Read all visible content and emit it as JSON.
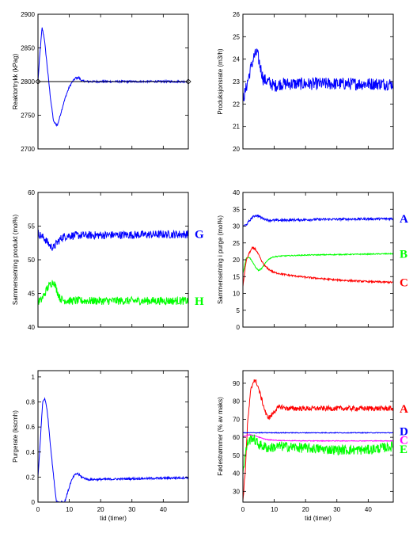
{
  "colors": {
    "blue": "#0000ff",
    "green": "#00ff00",
    "red": "#ff0000",
    "magenta": "#ff00ff",
    "black": "#000000"
  },
  "chart_data": [
    {
      "type": "line",
      "ylabel": "Reaktortrykk (kPag)",
      "xlabel": "",
      "xlim": [
        0,
        48
      ],
      "ylim": [
        2700,
        2900
      ],
      "xticks": [],
      "yticks": [
        "2700",
        "2750",
        "2800",
        "2850",
        "2900"
      ],
      "series": [
        {
          "color": "blue",
          "noise": 1.5,
          "points": [
            [
              0,
              2800
            ],
            [
              0.5,
              2835
            ],
            [
              1.3,
              2880
            ],
            [
              2,
              2865
            ],
            [
              3,
              2820
            ],
            [
              4,
              2775
            ],
            [
              5,
              2740
            ],
            [
              6.2,
              2735
            ],
            [
              7,
              2748
            ],
            [
              8,
              2765
            ],
            [
              9,
              2780
            ],
            [
              10,
              2792
            ],
            [
              11,
              2800
            ],
            [
              12,
              2805
            ],
            [
              13,
              2806
            ],
            [
              14,
              2801
            ],
            [
              16,
              2800
            ],
            [
              48,
              2800
            ]
          ]
        },
        {
          "color": "black",
          "noise": 0,
          "points": [
            [
              0,
              2800
            ],
            [
              48,
              2800
            ]
          ]
        }
      ],
      "markers": [
        [
          0,
          2800
        ],
        [
          48,
          2800
        ]
      ],
      "series_labels": []
    },
    {
      "type": "line",
      "ylabel": "Produksjonsrate (m3/h)",
      "xlabel": "",
      "xlim": [
        0,
        48
      ],
      "ylim": [
        20,
        26
      ],
      "xticks": [],
      "yticks": [
        "20",
        "21",
        "22",
        "23",
        "24",
        "25",
        "26"
      ],
      "series": [
        {
          "color": "blue",
          "noise": 0.28,
          "points": [
            [
              0,
              22.3
            ],
            [
              0.5,
              22.4
            ],
            [
              1.5,
              23
            ],
            [
              2.5,
              23.6
            ],
            [
              3.5,
              24.1
            ],
            [
              4.5,
              24.3
            ],
            [
              5.5,
              23.7
            ],
            [
              6.5,
              23.1
            ],
            [
              8,
              23
            ],
            [
              10,
              22.8
            ],
            [
              12,
              22.9
            ],
            [
              48,
              22.9
            ]
          ]
        }
      ],
      "markers": [],
      "series_labels": []
    },
    {
      "type": "line",
      "ylabel": "Sammensetning produkt (mol%)",
      "xlabel": "",
      "xlim": [
        0,
        48
      ],
      "ylim": [
        40,
        60
      ],
      "xticks": [],
      "yticks": [
        "40",
        "45",
        "50",
        "55",
        "60"
      ],
      "series": [
        {
          "color": "blue",
          "noise": 0.6,
          "points": [
            [
              0,
              54
            ],
            [
              1,
              53.5
            ],
            [
              2,
              53.2
            ],
            [
              3,
              52.6
            ],
            [
              4,
              52
            ],
            [
              5,
              51.8
            ],
            [
              6,
              52.5
            ],
            [
              7,
              53
            ],
            [
              8,
              53.4
            ],
            [
              10,
              53.6
            ],
            [
              48,
              53.8
            ]
          ]
        },
        {
          "color": "green",
          "noise": 0.6,
          "points": [
            [
              0,
              43.8
            ],
            [
              1,
              44
            ],
            [
              2,
              44.8
            ],
            [
              3,
              45.8
            ],
            [
              4,
              46.4
            ],
            [
              5,
              46.8
            ],
            [
              6,
              45.5
            ],
            [
              7,
              44.3
            ],
            [
              8,
              44
            ],
            [
              10,
              43.9
            ],
            [
              48,
              43.9
            ]
          ]
        }
      ],
      "markers": [],
      "series_labels": [
        {
          "text": "G",
          "color": "blue",
          "y": 53.8
        },
        {
          "text": "H",
          "color": "green",
          "y": 43.9
        }
      ]
    },
    {
      "type": "line",
      "ylabel": "Sammensetning i purge (mol%)",
      "xlabel": "",
      "xlim": [
        0,
        48
      ],
      "ylim": [
        0,
        40
      ],
      "xticks": [],
      "yticks": [
        "0",
        "5",
        "10",
        "15",
        "20",
        "25",
        "30",
        "35",
        "40"
      ],
      "series": [
        {
          "color": "blue",
          "noise": 0.35,
          "points": [
            [
              0,
              30
            ],
            [
              1,
              30.3
            ],
            [
              2,
              31.5
            ],
            [
              3,
              32.6
            ],
            [
              4,
              33.2
            ],
            [
              5,
              33
            ],
            [
              6,
              32.4
            ],
            [
              8,
              31.8
            ],
            [
              10,
              31.7
            ],
            [
              15,
              31.8
            ],
            [
              25,
              32
            ],
            [
              48,
              32.2
            ]
          ]
        },
        {
          "color": "green",
          "noise": 0.15,
          "points": [
            [
              0,
              16
            ],
            [
              0.5,
              18
            ],
            [
              1,
              20.5
            ],
            [
              2,
              20.8
            ],
            [
              3,
              19.5
            ],
            [
              4,
              17.8
            ],
            [
              5,
              16.8
            ],
            [
              6,
              17.4
            ],
            [
              7,
              18.8
            ],
            [
              8,
              20
            ],
            [
              9,
              20.6
            ],
            [
              10,
              20.9
            ],
            [
              12,
              21.1
            ],
            [
              20,
              21.4
            ],
            [
              48,
              21.8
            ]
          ]
        },
        {
          "color": "red",
          "noise": 0.25,
          "points": [
            [
              0,
              12
            ],
            [
              0.5,
              16
            ],
            [
              1,
              19.5
            ],
            [
              2,
              22
            ],
            [
              3,
              23.5
            ],
            [
              4,
              23.2
            ],
            [
              5,
              21.5
            ],
            [
              6,
              19.5
            ],
            [
              7,
              18.2
            ],
            [
              8,
              17.3
            ],
            [
              10,
              16.2
            ],
            [
              14,
              15.5
            ],
            [
              20,
              14.8
            ],
            [
              30,
              14
            ],
            [
              40,
              13.5
            ],
            [
              48,
              13.3
            ]
          ]
        }
      ],
      "markers": [],
      "series_labels": [
        {
          "text": "A",
          "color": "blue",
          "y": 32.2
        },
        {
          "text": "B",
          "color": "green",
          "y": 21.8
        },
        {
          "text": "C",
          "color": "red",
          "y": 13.3
        }
      ]
    },
    {
      "type": "line",
      "ylabel": "Purgerate (kscmh)",
      "xlabel": "tid (timer)",
      "xlim": [
        0,
        48
      ],
      "ylim": [
        0,
        1.05
      ],
      "xticks": [
        "0",
        "10",
        "20",
        "30",
        "40"
      ],
      "yticks": [
        "0",
        "0.2",
        "0.4",
        "0.6",
        "0.8",
        "1"
      ],
      "series": [
        {
          "color": "blue",
          "noise": 0.008,
          "points": [
            [
              0,
              0.2
            ],
            [
              0.4,
              0.35
            ],
            [
              1,
              0.6
            ],
            [
              1.5,
              0.8
            ],
            [
              2.2,
              0.83
            ],
            [
              3,
              0.72
            ],
            [
              4,
              0.45
            ],
            [
              5,
              0.2
            ],
            [
              5.8,
              0.02
            ],
            [
              6,
              0
            ],
            [
              8.5,
              0
            ],
            [
              9.5,
              0.08
            ],
            [
              10.5,
              0.16
            ],
            [
              11.5,
              0.21
            ],
            [
              12.5,
              0.23
            ],
            [
              14,
              0.2
            ],
            [
              16,
              0.18
            ],
            [
              48,
              0.195
            ]
          ]
        }
      ],
      "markers": [],
      "series_labels": []
    },
    {
      "type": "line",
      "ylabel": "Fødestrømmer (% av maks)",
      "xlabel": "tid (timer)",
      "xlim": [
        0,
        48
      ],
      "ylim": [
        24,
        97
      ],
      "xticks": [
        "0",
        "10",
        "20",
        "30",
        "40"
      ],
      "yticks": [
        "30",
        "40",
        "50",
        "60",
        "70",
        "80",
        "90"
      ],
      "series": [
        {
          "color": "red",
          "noise": 1.4,
          "points": [
            [
              0,
              25
            ],
            [
              0.7,
              40
            ],
            [
              1.5,
              68
            ],
            [
              2.5,
              86
            ],
            [
              3.5,
              92
            ],
            [
              4.5,
              90
            ],
            [
              5.5,
              84
            ],
            [
              6.5,
              78
            ],
            [
              7.5,
              72
            ],
            [
              8.5,
              71
            ],
            [
              9.5,
              73
            ],
            [
              10.5,
              75.5
            ],
            [
              12,
              77
            ],
            [
              14,
              76
            ],
            [
              20,
              76
            ],
            [
              48,
              76
            ]
          ]
        },
        {
          "color": "blue",
          "noise": 0.2,
          "points": [
            [
              0,
              62.5
            ],
            [
              48,
              62.5
            ]
          ]
        },
        {
          "color": "magenta",
          "noise": 0.2,
          "points": [
            [
              0,
              60.2
            ],
            [
              2,
              61.5
            ],
            [
              4,
              60.8
            ],
            [
              6,
              59.5
            ],
            [
              8,
              58.6
            ],
            [
              12,
              58.2
            ],
            [
              20,
              58
            ],
            [
              48,
              58
            ]
          ]
        },
        {
          "color": "green",
          "noise": 2.8,
          "points": [
            [
              0,
              40
            ],
            [
              0.5,
              48
            ],
            [
              1.5,
              57
            ],
            [
              3,
              60
            ],
            [
              5,
              56
            ],
            [
              8,
              54
            ],
            [
              12,
              55
            ],
            [
              20,
              54
            ],
            [
              30,
              53
            ],
            [
              40,
              53
            ],
            [
              48,
              55
            ]
          ]
        }
      ],
      "markers": [],
      "series_labels": [
        {
          "text": "A",
          "color": "red",
          "y": 76
        },
        {
          "text": "D",
          "color": "blue",
          "y": 63.3
        },
        {
          "text": "C",
          "color": "magenta",
          "y": 58.5
        },
        {
          "text": "E",
          "color": "green",
          "y": 53.5
        }
      ]
    }
  ]
}
